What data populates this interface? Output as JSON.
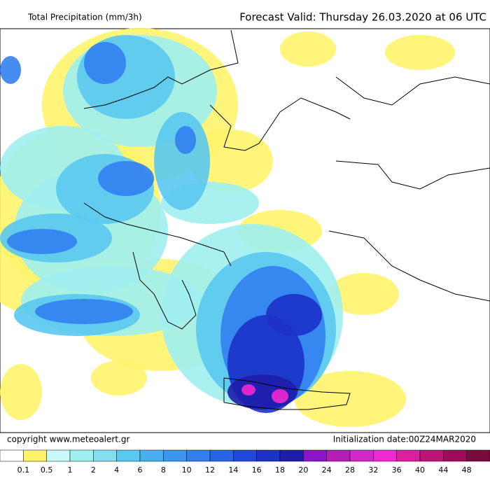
{
  "header": {
    "title": "Total Precipitation (mm/3h)",
    "forecast": "Forecast Valid:  Thursday 26.03.2020 at 06 UTC"
  },
  "footer": {
    "copyright": "copyright  www.meteoalert.gr",
    "initialization": "Initialization date:00Z24MAR2020"
  },
  "colorbar": {
    "colors": [
      "#ffffff",
      "#fef46c",
      "#c8fafa",
      "#a0f0f0",
      "#82e0f0",
      "#5ac8f0",
      "#46b0f0",
      "#3c96f0",
      "#3280f0",
      "#2864e6",
      "#2048dc",
      "#1c32c8",
      "#1e1eaa",
      "#8c14c8",
      "#b41eb4",
      "#d228c8",
      "#f028d2",
      "#dc1ea0",
      "#be1478",
      "#a00a5a",
      "#780a3c"
    ],
    "labels": [
      "0.1",
      "0.5",
      "1",
      "2",
      "4",
      "6",
      "8",
      "10",
      "12",
      "14",
      "16",
      "18",
      "20",
      "24",
      "28",
      "32",
      "36",
      "40",
      "44",
      "48"
    ]
  }
}
